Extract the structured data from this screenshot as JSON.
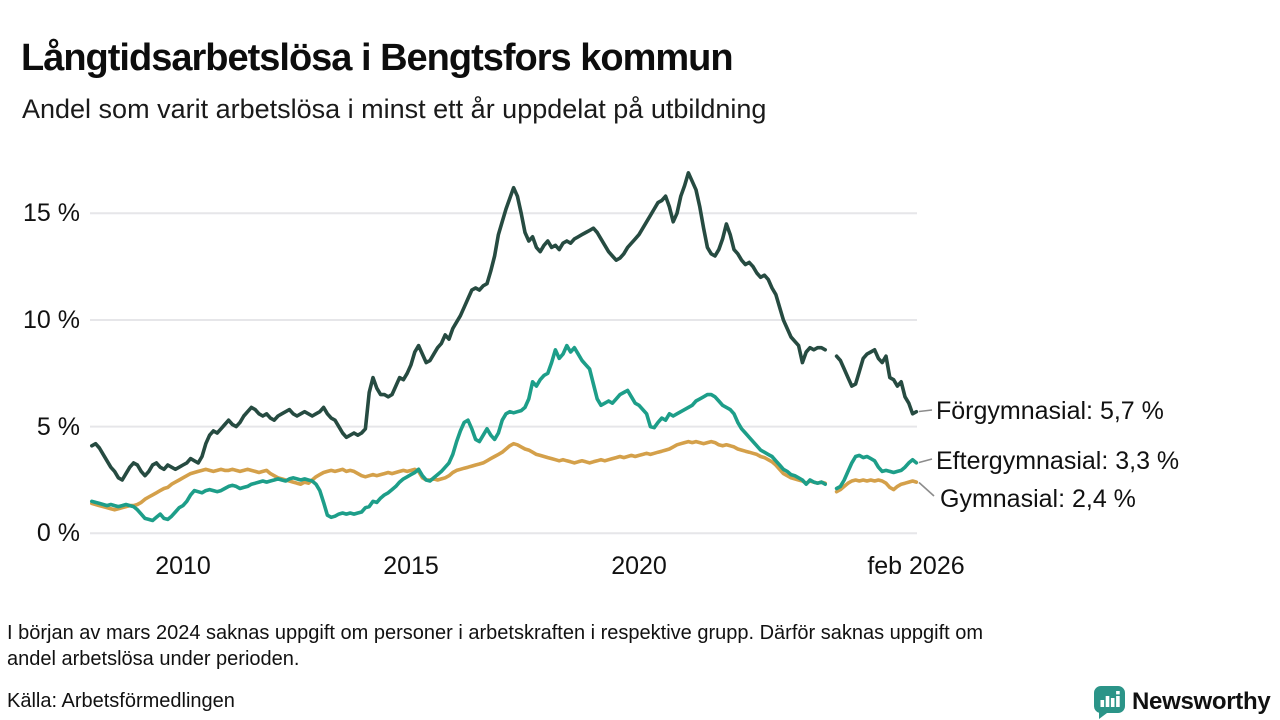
{
  "page": {
    "title": "Långtidsarbetslösa i Bengtsfors kommun",
    "subtitle": "Andel som varit arbetslösa i minst ett år uppdelat på utbildning",
    "footnote_line1": "I början av mars 2024 saknas uppgift om personer i arbetskraften i respektive grupp. Därför saknas uppgift om",
    "footnote_line2": "andel arbetslösa under perioden.",
    "source": "Källa: Arbetsförmedlingen",
    "brand": {
      "name": "Newsworthy",
      "color": "#2B9488",
      "icon": "newsworthy-chart-bubble-icon"
    }
  },
  "chart_data": {
    "type": "line",
    "title": "Långtidsarbetslösa i Bengtsfors kommun",
    "subtitle": "Andel som varit arbetslösa i minst ett år uppdelat på utbildning",
    "unit": "%",
    "frequency": "monthly",
    "x_range": {
      "start": "2008-01",
      "end": "2026-02"
    },
    "ylim": [
      0,
      17.6
    ],
    "grid": true,
    "legend_position": "right-end-labels",
    "missing_data": "2024-03 and 2024-04 have no values (gap in all series)",
    "y_ticks": [
      {
        "value": 0,
        "label": "0 %"
      },
      {
        "value": 5,
        "label": "5 %"
      },
      {
        "value": 10,
        "label": "10 %"
      },
      {
        "value": 15,
        "label": "15 %"
      }
    ],
    "x_ticks": [
      {
        "t": 2010,
        "label": "2010"
      },
      {
        "t": 2015,
        "label": "2015"
      },
      {
        "t": 2020,
        "label": "2020"
      },
      {
        "t": 2026.083,
        "label": "feb 2026"
      }
    ],
    "series": [
      {
        "name": "Gymnasial",
        "end_label": "Gymnasial: 2,4 %",
        "end_value": 2.4,
        "color": "#D4A04A",
        "values": [
          1.4,
          1.35,
          1.3,
          1.25,
          1.2,
          1.15,
          1.1,
          1.15,
          1.2,
          1.25,
          1.3,
          1.3,
          1.35,
          1.45,
          1.6,
          1.7,
          1.8,
          1.9,
          2.0,
          2.1,
          2.15,
          2.3,
          2.4,
          2.5,
          2.6,
          2.7,
          2.8,
          2.85,
          2.9,
          2.95,
          3.0,
          2.95,
          2.9,
          2.95,
          3.0,
          2.95,
          2.95,
          3.0,
          2.95,
          2.9,
          2.95,
          3.0,
          2.95,
          2.9,
          2.85,
          2.9,
          2.95,
          2.8,
          2.7,
          2.6,
          2.55,
          2.5,
          2.45,
          2.4,
          2.35,
          2.3,
          2.4,
          2.35,
          2.5,
          2.65,
          2.75,
          2.85,
          2.9,
          2.95,
          2.9,
          2.95,
          3.0,
          2.9,
          2.95,
          2.9,
          2.8,
          2.7,
          2.65,
          2.7,
          2.75,
          2.7,
          2.75,
          2.8,
          2.85,
          2.8,
          2.85,
          2.9,
          2.95,
          2.9,
          2.95,
          3.0,
          2.9,
          2.6,
          2.5,
          2.5,
          2.55,
          2.5,
          2.55,
          2.6,
          2.7,
          2.85,
          2.95,
          3.0,
          3.05,
          3.1,
          3.15,
          3.2,
          3.25,
          3.3,
          3.4,
          3.5,
          3.6,
          3.7,
          3.8,
          3.95,
          4.1,
          4.2,
          4.15,
          4.05,
          3.95,
          3.9,
          3.8,
          3.7,
          3.65,
          3.6,
          3.55,
          3.5,
          3.45,
          3.4,
          3.45,
          3.4,
          3.35,
          3.3,
          3.35,
          3.4,
          3.35,
          3.3,
          3.35,
          3.4,
          3.45,
          3.4,
          3.45,
          3.5,
          3.55,
          3.6,
          3.55,
          3.6,
          3.65,
          3.6,
          3.65,
          3.7,
          3.75,
          3.7,
          3.75,
          3.8,
          3.85,
          3.9,
          3.95,
          4.05,
          4.15,
          4.2,
          4.25,
          4.3,
          4.25,
          4.3,
          4.25,
          4.2,
          4.25,
          4.3,
          4.25,
          4.15,
          4.1,
          4.15,
          4.1,
          4.05,
          3.95,
          3.9,
          3.85,
          3.8,
          3.75,
          3.7,
          3.6,
          3.55,
          3.45,
          3.35,
          3.2,
          3.0,
          2.8,
          2.7,
          2.6,
          2.55,
          2.5,
          2.45,
          2.35,
          2.45,
          2.4,
          2.35,
          2.4,
          2.35,
          null,
          null,
          1.95,
          2.05,
          2.2,
          2.35,
          2.45,
          2.5,
          2.45,
          2.5,
          2.45,
          2.5,
          2.45,
          2.5,
          2.45,
          2.35,
          2.15,
          2.05,
          2.2,
          2.3,
          2.35,
          2.4,
          2.45,
          2.4
        ]
      },
      {
        "name": "Eftergymnasial",
        "end_label": "Eftergymnasial: 3,3 %",
        "end_value": 3.3,
        "color": "#1D9E89",
        "values": [
          1.5,
          1.45,
          1.4,
          1.35,
          1.3,
          1.35,
          1.3,
          1.25,
          1.3,
          1.35,
          1.3,
          1.25,
          1.1,
          0.9,
          0.7,
          0.65,
          0.6,
          0.75,
          0.9,
          0.7,
          0.65,
          0.8,
          1.0,
          1.2,
          1.3,
          1.5,
          1.8,
          2.0,
          1.95,
          1.9,
          2.0,
          2.05,
          2.0,
          1.95,
          2.0,
          2.1,
          2.2,
          2.25,
          2.2,
          2.1,
          2.15,
          2.2,
          2.3,
          2.35,
          2.4,
          2.45,
          2.4,
          2.45,
          2.5,
          2.55,
          2.5,
          2.45,
          2.55,
          2.6,
          2.55,
          2.5,
          2.55,
          2.5,
          2.45,
          2.3,
          2.0,
          1.45,
          0.85,
          0.75,
          0.8,
          0.9,
          0.95,
          0.9,
          0.95,
          0.9,
          0.95,
          1.0,
          1.2,
          1.25,
          1.5,
          1.45,
          1.65,
          1.8,
          1.9,
          2.05,
          2.2,
          2.4,
          2.55,
          2.65,
          2.75,
          2.85,
          3.0,
          2.7,
          2.5,
          2.45,
          2.6,
          2.75,
          2.9,
          3.1,
          3.3,
          3.7,
          4.3,
          4.8,
          5.2,
          5.3,
          4.9,
          4.4,
          4.3,
          4.6,
          4.9,
          4.6,
          4.4,
          4.7,
          5.3,
          5.6,
          5.7,
          5.65,
          5.7,
          5.75,
          5.9,
          6.3,
          7.1,
          6.9,
          7.2,
          7.4,
          7.5,
          8.0,
          8.6,
          8.2,
          8.4,
          8.8,
          8.5,
          8.7,
          8.4,
          8.1,
          7.9,
          7.7,
          7.0,
          6.3,
          6.0,
          6.1,
          6.2,
          6.1,
          6.3,
          6.5,
          6.6,
          6.7,
          6.4,
          6.1,
          6.0,
          5.8,
          5.6,
          5.0,
          4.95,
          5.2,
          5.4,
          5.3,
          5.6,
          5.5,
          5.6,
          5.7,
          5.8,
          5.9,
          6.0,
          6.2,
          6.3,
          6.4,
          6.5,
          6.5,
          6.4,
          6.2,
          6.0,
          5.9,
          5.8,
          5.6,
          5.2,
          4.9,
          4.7,
          4.5,
          4.3,
          4.1,
          3.9,
          3.8,
          3.7,
          3.6,
          3.4,
          3.2,
          3.0,
          2.9,
          2.75,
          2.7,
          2.6,
          2.5,
          2.3,
          2.5,
          2.4,
          2.35,
          2.4,
          2.3,
          null,
          null,
          2.1,
          2.2,
          2.5,
          2.9,
          3.3,
          3.6,
          3.65,
          3.55,
          3.6,
          3.5,
          3.4,
          3.1,
          2.9,
          2.95,
          2.9,
          2.85,
          2.9,
          2.95,
          3.1,
          3.3,
          3.45,
          3.3
        ]
      },
      {
        "name": "Förgymnasial",
        "end_label": "Förgymnasial: 5,7 %",
        "end_value": 5.7,
        "color": "#264B41",
        "values": [
          4.1,
          4.2,
          4.0,
          3.7,
          3.4,
          3.1,
          2.9,
          2.6,
          2.5,
          2.8,
          3.1,
          3.3,
          3.2,
          2.9,
          2.7,
          2.9,
          3.2,
          3.3,
          3.1,
          3.0,
          3.2,
          3.1,
          3.0,
          3.1,
          3.2,
          3.3,
          3.5,
          3.4,
          3.3,
          3.6,
          4.2,
          4.6,
          4.8,
          4.7,
          4.9,
          5.1,
          5.3,
          5.1,
          5.0,
          5.2,
          5.5,
          5.7,
          5.9,
          5.8,
          5.6,
          5.5,
          5.6,
          5.4,
          5.3,
          5.5,
          5.6,
          5.7,
          5.8,
          5.6,
          5.5,
          5.6,
          5.7,
          5.6,
          5.5,
          5.6,
          5.7,
          5.9,
          5.6,
          5.4,
          5.3,
          5.0,
          4.7,
          4.5,
          4.6,
          4.7,
          4.6,
          4.7,
          4.9,
          6.6,
          7.3,
          6.8,
          6.5,
          6.5,
          6.4,
          6.5,
          6.9,
          7.3,
          7.2,
          7.5,
          7.9,
          8.5,
          8.8,
          8.4,
          8.0,
          8.1,
          8.4,
          8.7,
          8.9,
          9.3,
          9.1,
          9.6,
          9.9,
          10.2,
          10.6,
          11.0,
          11.4,
          11.5,
          11.4,
          11.6,
          11.7,
          12.3,
          13.0,
          14.0,
          14.6,
          15.2,
          15.7,
          16.2,
          15.8,
          15.0,
          14.1,
          13.7,
          13.9,
          13.4,
          13.2,
          13.5,
          13.7,
          13.4,
          13.5,
          13.3,
          13.6,
          13.7,
          13.6,
          13.8,
          13.9,
          14.0,
          14.1,
          14.2,
          14.3,
          14.1,
          13.8,
          13.5,
          13.2,
          13.0,
          12.8,
          12.9,
          13.1,
          13.4,
          13.6,
          13.8,
          14.0,
          14.3,
          14.6,
          14.9,
          15.2,
          15.5,
          15.6,
          15.8,
          15.3,
          14.6,
          15.0,
          15.8,
          16.3,
          16.9,
          16.5,
          16.1,
          15.3,
          14.3,
          13.4,
          13.1,
          13.0,
          13.3,
          13.8,
          14.5,
          14.0,
          13.3,
          13.1,
          12.8,
          12.6,
          12.7,
          12.5,
          12.2,
          12.0,
          12.1,
          11.9,
          11.5,
          11.2,
          10.6,
          10.0,
          9.6,
          9.2,
          9.0,
          8.8,
          8.0,
          8.5,
          8.7,
          8.6,
          8.7,
          8.7,
          8.6,
          null,
          null,
          8.3,
          8.1,
          7.7,
          7.3,
          6.9,
          7.0,
          7.6,
          8.2,
          8.4,
          8.5,
          8.6,
          8.2,
          8.0,
          8.3,
          7.3,
          7.2,
          6.9,
          7.1,
          6.4,
          6.1,
          5.6,
          5.7
        ]
      }
    ]
  }
}
